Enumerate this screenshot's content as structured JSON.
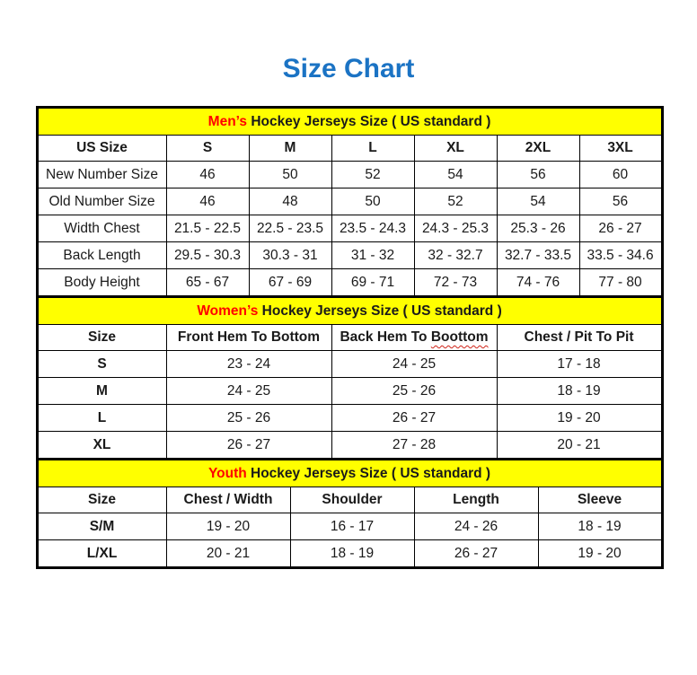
{
  "page_title": "Size Chart",
  "colors": {
    "title_blue": "#1b73c4",
    "band_yellow": "#ffff00",
    "accent_red": "#ff0000",
    "border_black": "#000000",
    "spellcheck_red": "#cf2318"
  },
  "sections": [
    {
      "id": "men",
      "title_accent": "Men’s",
      "title_rest": " Hockey Jerseys Size ( US standard )",
      "headers": [
        "US Size",
        "S",
        "M",
        "L",
        "XL",
        "2XL",
        "3XL"
      ],
      "row_label_bold": false,
      "rows": [
        [
          "New Number Size",
          "46",
          "50",
          "52",
          "54",
          "56",
          "60"
        ],
        [
          "Old Number Size",
          "46",
          "48",
          "50",
          "52",
          "54",
          "56"
        ],
        [
          "Width Chest",
          "21.5 - 22.5",
          "22.5 - 23.5",
          "23.5 - 24.3",
          "24.3 - 25.3",
          "25.3 - 26",
          "26 - 27"
        ],
        [
          "Back Length",
          "29.5 - 30.3",
          "30.3 - 31",
          "31 - 32",
          "32 - 32.7",
          "32.7 - 33.5",
          "33.5 - 34.6"
        ],
        [
          "Body Height",
          "65 - 67",
          "67 - 69",
          "69 - 71",
          "72 - 73",
          "74 - 76",
          "77 - 80"
        ]
      ]
    },
    {
      "id": "women",
      "title_accent": "Women’s",
      "title_rest": " Hockey Jerseys Size ( US standard )",
      "headers": [
        "Size",
        "Front Hem To Bottom",
        "Back Hem To Boottom",
        "Chest / Pit To Pit"
      ],
      "spellcheck_word": "Boottom",
      "row_label_bold": true,
      "rows": [
        [
          "S",
          "23 - 24",
          "24 - 25",
          "17 - 18"
        ],
        [
          "M",
          "24 - 25",
          "25 - 26",
          "18 - 19"
        ],
        [
          "L",
          "25 - 26",
          "26 - 27",
          "19 - 20"
        ],
        [
          "XL",
          "26 - 27",
          "27 - 28",
          "20 - 21"
        ]
      ]
    },
    {
      "id": "youth",
      "title_accent": "Youth",
      "title_rest": " Hockey Jerseys Size ( US standard )",
      "headers": [
        "Size",
        "Chest / Width",
        "Shoulder",
        "Length",
        "Sleeve"
      ],
      "row_label_bold": true,
      "rows": [
        [
          "S/M",
          "19 - 20",
          "16 - 17",
          "24 - 26",
          "18 - 19"
        ],
        [
          "L/XL",
          "20 - 21",
          "18 - 19",
          "26 - 27",
          "19 - 20"
        ]
      ]
    }
  ]
}
